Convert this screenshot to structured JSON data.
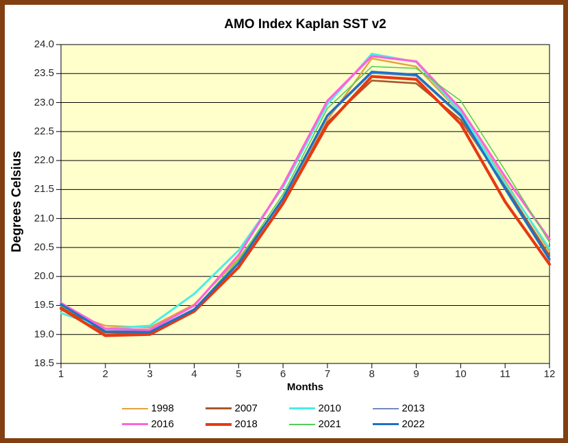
{
  "chart_data": {
    "type": "line",
    "title": "AMO Index Kaplan SST v2",
    "xlabel": "Months",
    "ylabel": "Degrees Celsius",
    "x": [
      1,
      2,
      3,
      4,
      5,
      6,
      7,
      8,
      9,
      10,
      11,
      12
    ],
    "xlim": [
      1,
      12
    ],
    "ylim": [
      18.5,
      24.0
    ],
    "yticks": [
      18.5,
      19.0,
      19.5,
      20.0,
      20.5,
      21.0,
      21.5,
      22.0,
      22.5,
      23.0,
      23.5,
      24.0
    ],
    "grid": "horizontal",
    "grid_color": "#000000",
    "plot_bg": "#FFFFCC",
    "frame_color": "#823F11",
    "legend_position": "bottom",
    "series": [
      {
        "name": "1998",
        "color": "#E2A33D",
        "width": 2.4,
        "values": [
          19.42,
          19.15,
          19.12,
          19.52,
          20.31,
          21.31,
          22.7,
          23.76,
          23.62,
          22.82,
          21.65,
          20.43
        ]
      },
      {
        "name": "2007",
        "color": "#A8572C",
        "width": 2.6,
        "values": [
          19.47,
          19.03,
          19.01,
          19.41,
          20.15,
          21.27,
          22.66,
          23.38,
          23.33,
          22.7,
          21.56,
          20.36
        ]
      },
      {
        "name": "2010",
        "color": "#4AEDE4",
        "width": 3.0,
        "values": [
          19.37,
          19.1,
          19.15,
          19.7,
          20.45,
          21.54,
          22.97,
          23.84,
          23.7,
          22.83,
          21.61,
          20.48
        ]
      },
      {
        "name": "2013",
        "color": "#7589BE",
        "width": 2.4,
        "values": [
          19.55,
          19.06,
          19.05,
          19.44,
          20.24,
          21.33,
          22.76,
          23.51,
          23.46,
          22.76,
          21.5,
          20.28
        ]
      },
      {
        "name": "2016",
        "color": "#FF63DB",
        "width": 3.3,
        "values": [
          19.54,
          19.1,
          19.08,
          19.5,
          20.37,
          21.58,
          23.03,
          23.8,
          23.71,
          22.89,
          21.72,
          20.64
        ]
      },
      {
        "name": "2018",
        "color": "#E63911",
        "width": 4.2,
        "values": [
          19.45,
          18.98,
          19.0,
          19.4,
          20.16,
          21.26,
          22.62,
          23.45,
          23.4,
          22.63,
          21.29,
          20.21
        ]
      },
      {
        "name": "2021",
        "color": "#55CD55",
        "width": 1.6,
        "values": [
          19.5,
          19.06,
          19.04,
          19.44,
          20.28,
          21.42,
          22.9,
          23.62,
          23.59,
          23.03,
          21.83,
          20.59
        ]
      },
      {
        "name": "2022",
        "color": "#1D70C6",
        "width": 3.2,
        "values": [
          19.52,
          19.05,
          19.04,
          19.43,
          20.23,
          21.35,
          22.78,
          23.53,
          23.48,
          22.78,
          21.52,
          20.3
        ]
      }
    ]
  }
}
